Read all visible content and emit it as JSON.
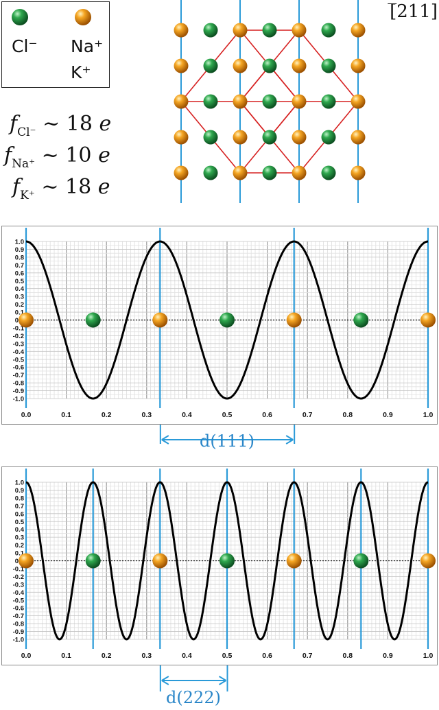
{
  "direction_label": "[̅211]",
  "legend": {
    "cl_label": "Cl⁻",
    "na_label": "Na⁺",
    "k_label": "K⁺"
  },
  "scattering_factors": [
    {
      "symbol": "f",
      "ion": "Cl⁻",
      "relation": "~",
      "value": "18",
      "unit": "e"
    },
    {
      "symbol": "f",
      "ion": "Na⁺",
      "relation": "~",
      "value": "10",
      "unit": "e"
    },
    {
      "symbol": "f",
      "ion": "K⁺",
      "relation": "~",
      "value": "18",
      "unit": "e"
    }
  ],
  "colors": {
    "cl_green": "#1f8a3c",
    "na_orange": "#f39a1a",
    "plane_blue": "#2a9ad8",
    "cell_red": "#d62020",
    "curve": "#000000"
  },
  "chart_data": [
    {
      "type": "line",
      "title": "",
      "function": "cos(2*pi*3*x)",
      "frequency": 3,
      "x": [
        0,
        0.1,
        0.2,
        0.3,
        0.4,
        0.5,
        0.6,
        0.7,
        0.8,
        0.9,
        1.0
      ],
      "xlim": [
        0,
        1.0
      ],
      "ylim": [
        -1.0,
        1.0
      ],
      "x_ticks": [
        "0.0",
        "0.1",
        "0.2",
        "0.3",
        "0.4",
        "0.5",
        "0.6",
        "0.7",
        "0.8",
        "0.9",
        "1.0"
      ],
      "y_ticks": [
        "1.0",
        "0.9",
        "0.8",
        "0.7",
        "0.6",
        "0.5",
        "0.4",
        "0.3",
        "0.2",
        "0.1",
        "0.0",
        "-0.1",
        "-0.2",
        "-0.3",
        "-0.4",
        "-0.5",
        "-0.6",
        "-0.7",
        "-0.8",
        "-0.9",
        "-1.0"
      ],
      "planes_x": [
        0,
        0.3333,
        0.6667,
        1.0
      ],
      "atoms": [
        {
          "x": 0,
          "ion": "Na+/K+"
        },
        {
          "x": 0.1667,
          "ion": "Cl-"
        },
        {
          "x": 0.3333,
          "ion": "Na+/K+"
        },
        {
          "x": 0.5,
          "ion": "Cl-"
        },
        {
          "x": 0.6667,
          "ion": "Na+/K+"
        },
        {
          "x": 0.8333,
          "ion": "Cl-"
        },
        {
          "x": 1.0,
          "ion": "Na+/K+"
        }
      ],
      "d_label": "d(111)",
      "d_range": [
        0.3333,
        0.6667
      ],
      "grid": true
    },
    {
      "type": "line",
      "title": "",
      "function": "cos(2*pi*6*x)",
      "frequency": 6,
      "xlim": [
        0,
        1.0
      ],
      "ylim": [
        -1.0,
        1.0
      ],
      "x_ticks": [
        "0.0",
        "0.1",
        "0.2",
        "0.3",
        "0.4",
        "0.5",
        "0.6",
        "0.7",
        "0.8",
        "0.9",
        "1.0"
      ],
      "y_ticks": [
        "1.0",
        "0.9",
        "0.8",
        "0.7",
        "0.6",
        "0.5",
        "0.4",
        "0.3",
        "0.2",
        "0.1",
        "0.0",
        "-0.1",
        "-0.2",
        "-0.3",
        "-0.4",
        "-0.5",
        "-0.6",
        "-0.7",
        "-0.8",
        "-0.9",
        "-1.0"
      ],
      "planes_x": [
        0,
        0.1667,
        0.3333,
        0.5,
        0.6667,
        0.8333,
        1.0
      ],
      "atoms": [
        {
          "x": 0,
          "ion": "Na+/K+"
        },
        {
          "x": 0.1667,
          "ion": "Cl-"
        },
        {
          "x": 0.3333,
          "ion": "Na+/K+"
        },
        {
          "x": 0.5,
          "ion": "Cl-"
        },
        {
          "x": 0.6667,
          "ion": "Na+/K+"
        },
        {
          "x": 0.8333,
          "ion": "Cl-"
        },
        {
          "x": 1.0,
          "ion": "Na+/K+"
        }
      ],
      "d_label": "d(222)",
      "d_range": [
        0.3333,
        0.5
      ],
      "grid": true
    }
  ]
}
